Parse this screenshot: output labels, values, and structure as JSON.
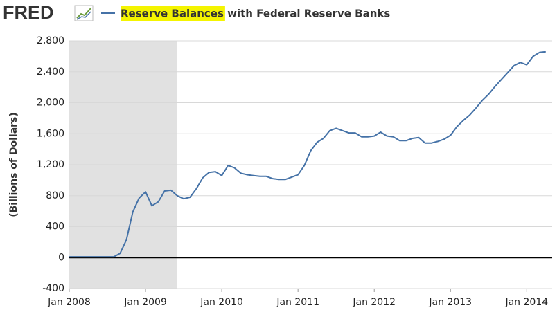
{
  "chart_data": {
    "type": "line",
    "logo": "FRED",
    "y_label": "(Billions of Dollars)",
    "x": [
      "2008-01",
      "2008-02",
      "2008-03",
      "2008-04",
      "2008-05",
      "2008-06",
      "2008-07",
      "2008-08",
      "2008-09",
      "2008-10",
      "2008-11",
      "2008-12",
      "2009-01",
      "2009-02",
      "2009-03",
      "2009-04",
      "2009-05",
      "2009-06",
      "2009-07",
      "2009-08",
      "2009-09",
      "2009-10",
      "2009-11",
      "2009-12",
      "2010-01",
      "2010-02",
      "2010-03",
      "2010-04",
      "2010-05",
      "2010-06",
      "2010-07",
      "2010-08",
      "2010-09",
      "2010-10",
      "2010-11",
      "2010-12",
      "2011-01",
      "2011-02",
      "2011-03",
      "2011-04",
      "2011-05",
      "2011-06",
      "2011-07",
      "2011-08",
      "2011-09",
      "2011-10",
      "2011-11",
      "2011-12",
      "2012-01",
      "2012-02",
      "2012-03",
      "2012-04",
      "2012-05",
      "2012-06",
      "2012-07",
      "2012-08",
      "2012-09",
      "2012-10",
      "2012-11",
      "2012-12",
      "2013-01",
      "2013-02",
      "2013-03",
      "2013-04",
      "2013-05",
      "2013-06",
      "2013-07",
      "2013-08",
      "2013-09",
      "2013-10",
      "2013-11",
      "2013-12",
      "2014-01",
      "2014-02",
      "2014-03",
      "2014-04"
    ],
    "series": [
      {
        "name": "Reserve Balances with Federal Reserve Banks",
        "color": "#4572a7",
        "values": [
          10,
          10,
          10,
          10,
          10,
          10,
          10,
          10,
          55,
          230,
          590,
          770,
          850,
          670,
          720,
          860,
          870,
          800,
          760,
          780,
          890,
          1030,
          1100,
          1110,
          1060,
          1190,
          1160,
          1090,
          1070,
          1060,
          1050,
          1050,
          1020,
          1010,
          1010,
          1040,
          1070,
          1190,
          1380,
          1490,
          1540,
          1640,
          1670,
          1640,
          1610,
          1610,
          1560,
          1560,
          1570,
          1620,
          1570,
          1560,
          1510,
          1510,
          1540,
          1550,
          1480,
          1480,
          1500,
          1530,
          1580,
          1690,
          1770,
          1840,
          1930,
          2030,
          2110,
          2210,
          2300,
          2390,
          2480,
          2520,
          2490,
          2600,
          2650,
          2660
        ]
      }
    ],
    "xlim": [
      "2008-01",
      "2014-05"
    ],
    "xticks": [
      {
        "value": "2008-01",
        "label": "Jan 2008"
      },
      {
        "value": "2009-01",
        "label": "Jan 2009"
      },
      {
        "value": "2010-01",
        "label": "Jan 2010"
      },
      {
        "value": "2011-01",
        "label": "Jan 2011"
      },
      {
        "value": "2012-01",
        "label": "Jan 2012"
      },
      {
        "value": "2013-01",
        "label": "Jan 2013"
      },
      {
        "value": "2014-01",
        "label": "Jan 2014"
      }
    ],
    "ylim": [
      -400,
      2800
    ],
    "yticks": [
      -400,
      0,
      400,
      800,
      {
        "value": 1200,
        "label": "1,200"
      },
      {
        "value": 1600,
        "label": "1,600"
      },
      {
        "value": 2000,
        "label": "2,000"
      },
      {
        "value": 2400,
        "label": "2,400"
      },
      {
        "value": 2800,
        "label": "2,800"
      }
    ],
    "grid": true,
    "recession": {
      "start": "2008-01",
      "end": "2009-06"
    },
    "recession_color": "#e1e1e1",
    "zero_line": true
  }
}
